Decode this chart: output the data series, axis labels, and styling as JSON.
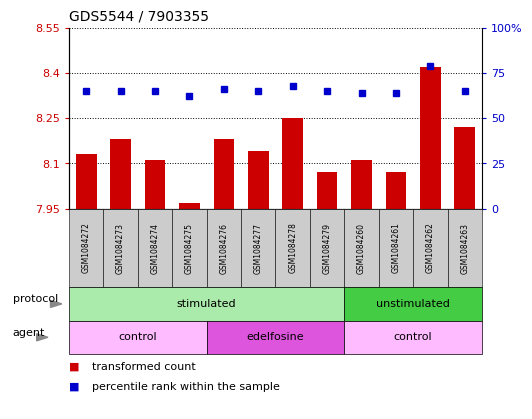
{
  "title": "GDS5544 / 7903355",
  "samples": [
    "GSM1084272",
    "GSM1084273",
    "GSM1084274",
    "GSM1084275",
    "GSM1084276",
    "GSM1084277",
    "GSM1084278",
    "GSM1084279",
    "GSM1084260",
    "GSM1084261",
    "GSM1084262",
    "GSM1084263"
  ],
  "bar_values": [
    8.13,
    8.18,
    8.11,
    7.97,
    8.18,
    8.14,
    8.25,
    8.07,
    8.11,
    8.07,
    8.42,
    8.22
  ],
  "dot_values": [
    65,
    65,
    65,
    62,
    66,
    65,
    68,
    65,
    64,
    64,
    79,
    65
  ],
  "bar_color": "#cc0000",
  "dot_color": "#0000cc",
  "ylim_left": [
    7.95,
    8.55
  ],
  "ylim_right": [
    0,
    100
  ],
  "yticks_left": [
    7.95,
    8.1,
    8.25,
    8.4,
    8.55
  ],
  "yticks_right": [
    0,
    25,
    50,
    75,
    100
  ],
  "ytick_labels_left": [
    "7.95",
    "8.1",
    "8.25",
    "8.4",
    "8.55"
  ],
  "ytick_labels_right": [
    "0",
    "25",
    "50",
    "75",
    "100%"
  ],
  "base_value": 7.95,
  "protocol_groups": [
    {
      "label": "stimulated",
      "start": 0,
      "end": 8,
      "color": "#aaeaaa"
    },
    {
      "label": "unstimulated",
      "start": 8,
      "end": 12,
      "color": "#44cc44"
    }
  ],
  "agent_groups": [
    {
      "label": "control",
      "start": 0,
      "end": 4,
      "color": "#ffbbff"
    },
    {
      "label": "edelfosine",
      "start": 4,
      "end": 8,
      "color": "#dd55dd"
    },
    {
      "label": "control",
      "start": 8,
      "end": 12,
      "color": "#ffbbff"
    }
  ],
  "legend_bar_label": "transformed count",
  "legend_dot_label": "percentile rank within the sample",
  "protocol_label": "protocol",
  "agent_label": "agent",
  "tick_color_left": "#cc0000",
  "tick_color_right": "#0000cc",
  "gsm_box_color": "#cccccc",
  "arrow_color": "#888888"
}
